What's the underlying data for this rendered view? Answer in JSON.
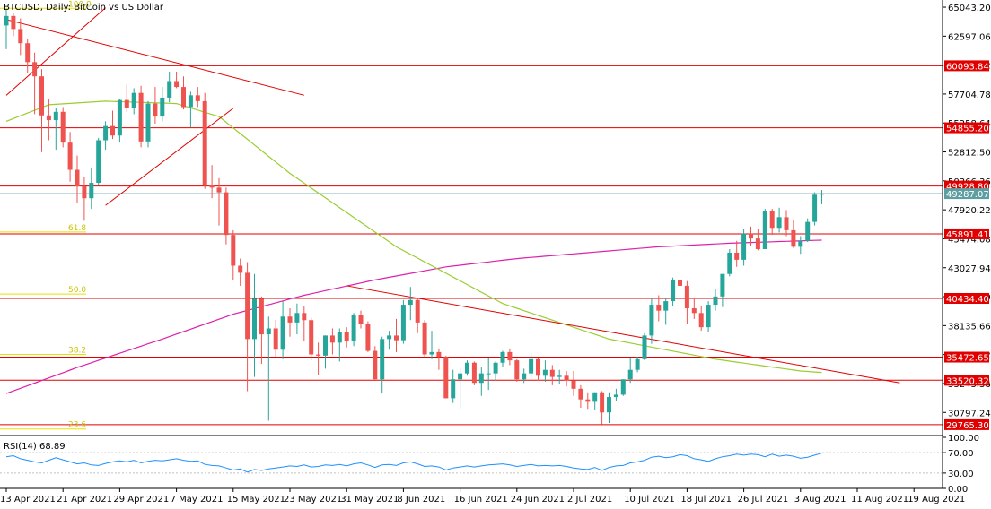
{
  "chart_data": {
    "type": "candlestick",
    "title": "BTCUSD, Daily:  BitCoin vs US Dollar",
    "symbol": "BTCUSD",
    "timeframe": "Daily",
    "ylim": [
      29000,
      65500
    ],
    "price_ticks": [
      "65043.200",
      "62597.060",
      "60150.920",
      "57704.780",
      "55258.640",
      "52812.500",
      "50366.360",
      "47920.220",
      "45474.080",
      "43027.940",
      "40581.800",
      "38135.660",
      "35689.520",
      "33243.380",
      "30797.240"
    ],
    "x_tick_labels": [
      "13 Apr 2021",
      "21 Apr 2021",
      "29 Apr 2021",
      "7 May 2021",
      "15 May 2021",
      "23 May 2021",
      "31 May 2021",
      "8 Jun 2021",
      "16 Jun 2021",
      "24 Jun 2021",
      "2 Jul 2021",
      "10 Jul 2021",
      "18 Jul 2021",
      "26 Jul 2021",
      "3 Aug 2021",
      "11 Aug 2021",
      "19 Aug 2021"
    ],
    "colors": {
      "bull": "#26a69a",
      "bear": "#ef5350",
      "level": "#e00000",
      "ma_fast": "#9acd32",
      "ma_slow": "#dd22aa",
      "fib": "#e8e000",
      "trend": "#e00000",
      "current": "#5f9ea0",
      "rsi": "#1e90ff"
    },
    "horizontal_levels": [
      {
        "label": "60093.845",
        "value": 60093.845
      },
      {
        "label": "54855.207",
        "value": 54855.207
      },
      {
        "label": "49928.803",
        "value": 49928.803
      },
      {
        "label": "45891.413",
        "value": 45891.413
      },
      {
        "label": "40434.404",
        "value": 40434.404
      },
      {
        "label": "35472.658",
        "value": 35472.658
      },
      {
        "label": "33520.324",
        "value": 33520.324
      },
      {
        "label": "29765.308",
        "value": 29765.308
      }
    ],
    "current_price": {
      "label": "49287.074",
      "value": 49287.074
    },
    "fib_levels": [
      {
        "label": "100.0",
        "value": 64950
      },
      {
        "label": "61.8",
        "value": 46050
      },
      {
        "label": "50.0",
        "value": 40800
      },
      {
        "label": "38.2",
        "value": 35700
      },
      {
        "label": "23.6",
        "value": 29400
      }
    ],
    "candles": [
      [
        63500,
        64900,
        61500,
        64300
      ],
      [
        64300,
        64600,
        62600,
        63200
      ],
      [
        63200,
        64100,
        61000,
        62000
      ],
      [
        62000,
        62400,
        59500,
        60400
      ],
      [
        60400,
        61200,
        56000,
        59200
      ],
      [
        59200,
        59800,
        52800,
        55900
      ],
      [
        55900,
        57300,
        53800,
        55500
      ],
      [
        55500,
        56500,
        53000,
        56200
      ],
      [
        56200,
        56600,
        53200,
        53600
      ],
      [
        53600,
        54500,
        50300,
        51300
      ],
      [
        51300,
        52500,
        48500,
        49900
      ],
      [
        49900,
        50700,
        47000,
        48900
      ],
      [
        48900,
        51500,
        48000,
        50200
      ],
      [
        50200,
        54000,
        50000,
        53800
      ],
      [
        53800,
        55400,
        53000,
        55000
      ],
      [
        55000,
        56300,
        53900,
        54200
      ],
      [
        54200,
        57300,
        53600,
        57200
      ],
      [
        57200,
        58500,
        56200,
        56500
      ],
      [
        56500,
        58200,
        56000,
        57800
      ],
      [
        57800,
        58400,
        53200,
        53700
      ],
      [
        53700,
        57100,
        53200,
        56900
      ],
      [
        56900,
        58300,
        55200,
        55800
      ],
      [
        55800,
        58300,
        55400,
        57400
      ],
      [
        57400,
        59600,
        57000,
        58800
      ],
      [
        58800,
        59600,
        58200,
        58300
      ],
      [
        58300,
        59200,
        56400,
        56600
      ],
      [
        56600,
        57900,
        54900,
        57600
      ],
      [
        57600,
        58300,
        56600,
        57100
      ],
      [
        57100,
        57800,
        49700,
        50000
      ],
      [
        50000,
        51700,
        48900,
        49800
      ],
      [
        49800,
        50600,
        46600,
        49400
      ],
      [
        49400,
        49800,
        45000,
        45800
      ],
      [
        45800,
        46200,
        42000,
        43200
      ],
      [
        43200,
        43800,
        41500,
        42600
      ],
      [
        42600,
        43500,
        32600,
        37000
      ],
      [
        37000,
        42500,
        33800,
        40400
      ],
      [
        40400,
        40600,
        34900,
        37400
      ],
      [
        37400,
        38900,
        30100,
        37900
      ],
      [
        37900,
        38600,
        35500,
        36100
      ],
      [
        36100,
        40200,
        35300,
        38900
      ],
      [
        38900,
        39600,
        37200,
        38400
      ],
      [
        38400,
        40000,
        37400,
        39200
      ],
      [
        39200,
        39800,
        36800,
        38600
      ],
      [
        38600,
        38800,
        35200,
        35700
      ],
      [
        35700,
        36700,
        34000,
        35600
      ],
      [
        35600,
        37300,
        34500,
        37300
      ],
      [
        37300,
        37900,
        35700,
        36700
      ],
      [
        36700,
        37900,
        35100,
        37600
      ],
      [
        37600,
        38000,
        36300,
        36800
      ],
      [
        36800,
        39200,
        36400,
        39000
      ],
      [
        39000,
        39400,
        37900,
        38300
      ],
      [
        38300,
        38500,
        35900,
        36000
      ],
      [
        36000,
        36400,
        33600,
        33600
      ],
      [
        33600,
        37200,
        32400,
        37000
      ],
      [
        37000,
        37700,
        36100,
        37300
      ],
      [
        37300,
        38700,
        35900,
        36900
      ],
      [
        36900,
        40300,
        36600,
        39900
      ],
      [
        39900,
        41400,
        38600,
        40300
      ],
      [
        40300,
        40400,
        37500,
        38400
      ],
      [
        38400,
        38600,
        35500,
        35700
      ],
      [
        35700,
        37700,
        35300,
        35900
      ],
      [
        35900,
        36200,
        34400,
        35500
      ],
      [
        35500,
        35600,
        32000,
        32000
      ],
      [
        32000,
        34400,
        31600,
        33600
      ],
      [
        33600,
        34500,
        31100,
        34100
      ],
      [
        34100,
        35200,
        33900,
        35000
      ],
      [
        35000,
        35100,
        33100,
        33300
      ],
      [
        33300,
        34600,
        32200,
        34100
      ],
      [
        34100,
        35400,
        32700,
        34100
      ],
      [
        34100,
        35100,
        33500,
        35000
      ],
      [
        35000,
        36000,
        34600,
        35900
      ],
      [
        35900,
        36200,
        34800,
        35200
      ],
      [
        35200,
        35300,
        33400,
        33600
      ],
      [
        33600,
        34500,
        33300,
        34100
      ],
      [
        34100,
        35800,
        33700,
        35300
      ],
      [
        35300,
        35400,
        33500,
        33900
      ],
      [
        33900,
        35200,
        33400,
        34400
      ],
      [
        34400,
        34800,
        33100,
        33800
      ],
      [
        33800,
        34400,
        33200,
        33900
      ],
      [
        33900,
        34300,
        33000,
        33500
      ],
      [
        33500,
        34300,
        32200,
        32800
      ],
      [
        32800,
        33100,
        31200,
        31900
      ],
      [
        31900,
        32500,
        31100,
        31700
      ],
      [
        31700,
        32500,
        31000,
        32500
      ],
      [
        32500,
        32600,
        29800,
        30800
      ],
      [
        30800,
        32500,
        29900,
        32100
      ],
      [
        32100,
        32800,
        31800,
        32300
      ],
      [
        32300,
        33600,
        32200,
        33600
      ],
      [
        33600,
        35400,
        33300,
        34400
      ],
      [
        34400,
        35500,
        34200,
        35300
      ],
      [
        35300,
        37500,
        35200,
        37300
      ],
      [
        37300,
        40500,
        36600,
        39900
      ],
      [
        39900,
        40700,
        38500,
        39400
      ],
      [
        39400,
        40500,
        38200,
        40200
      ],
      [
        40200,
        42200,
        39800,
        42000
      ],
      [
        42000,
        42300,
        39800,
        41500
      ],
      [
        41500,
        41900,
        38300,
        39600
      ],
      [
        39600,
        40500,
        38700,
        39200
      ],
      [
        39200,
        39800,
        37700,
        38000
      ],
      [
        38000,
        40200,
        37600,
        39900
      ],
      [
        39900,
        41200,
        39400,
        40600
      ],
      [
        40600,
        42500,
        39700,
        42500
      ],
      [
        42500,
        44600,
        42300,
        44300
      ],
      [
        44300,
        45300,
        43100,
        43700
      ],
      [
        43700,
        46300,
        43200,
        45900
      ],
      [
        45900,
        46500,
        44900,
        45500
      ],
      [
        45500,
        46300,
        44500,
        44600
      ],
      [
        44600,
        48000,
        44600,
        47800
      ],
      [
        47800,
        48000,
        45800,
        46400
      ],
      [
        46400,
        48100,
        46000,
        47300
      ],
      [
        47300,
        47900,
        45700,
        46200
      ],
      [
        46200,
        47100,
        44700,
        44800
      ],
      [
        44800,
        45700,
        44200,
        45300
      ],
      [
        45300,
        47200,
        45200,
        46900
      ],
      [
        46900,
        49400,
        46600,
        49200
      ],
      [
        49200,
        49600,
        48400,
        49287
      ]
    ],
    "ma_fast_anchors": [
      [
        0,
        55400
      ],
      [
        6,
        56800
      ],
      [
        14,
        57100
      ],
      [
        24,
        56900
      ],
      [
        30,
        55800
      ],
      [
        40,
        51000
      ],
      [
        55,
        44800
      ],
      [
        70,
        40000
      ],
      [
        85,
        37000
      ],
      [
        100,
        35300
      ],
      [
        112,
        34300
      ],
      [
        122,
        33900
      ],
      [
        131,
        34200
      ],
      [
        140,
        34300
      ],
      [
        148,
        35700
      ],
      [
        156,
        37600
      ],
      [
        164,
        38700
      ]
    ],
    "ma_slow_anchors": [
      [
        0,
        32400
      ],
      [
        10,
        34600
      ],
      [
        22,
        37000
      ],
      [
        32,
        39100
      ],
      [
        42,
        40700
      ],
      [
        52,
        42000
      ],
      [
        62,
        43100
      ],
      [
        72,
        43800
      ],
      [
        82,
        44300
      ],
      [
        92,
        44800
      ],
      [
        102,
        45100
      ],
      [
        112,
        45300
      ],
      [
        122,
        45500
      ],
      [
        132,
        45600
      ],
      [
        142,
        45700
      ],
      [
        152,
        45800
      ],
      [
        164,
        46000
      ]
    ],
    "trend_lines": [
      {
        "x1": 0,
        "y1": 64000,
        "x2": 42,
        "y2": 57600
      },
      {
        "x1": 0,
        "y1": 57600,
        "x2": 14,
        "y2": 65000
      },
      {
        "x1": 14,
        "y1": 48300,
        "x2": 32,
        "y2": 56500
      },
      {
        "x1": 48,
        "y1": 41500,
        "x2": 126,
        "y2": 33300
      }
    ],
    "rsi": {
      "label": "RSI(14) 68.89",
      "value": 68.89,
      "ticks": [
        "100.00",
        "70.00",
        "30.00",
        "0.00"
      ],
      "values": [
        62,
        64,
        58,
        55,
        52,
        50,
        55,
        60,
        56,
        52,
        48,
        50,
        46,
        45,
        49,
        52,
        54,
        52,
        55,
        50,
        53,
        55,
        54,
        56,
        58,
        55,
        53,
        54,
        47,
        45,
        44,
        40,
        36,
        38,
        32,
        37,
        35,
        38,
        40,
        42,
        44,
        43,
        46,
        42,
        43,
        46,
        45,
        47,
        44,
        48,
        50,
        46,
        41,
        46,
        47,
        45,
        50,
        52,
        48,
        43,
        44,
        42,
        36,
        40,
        42,
        44,
        42,
        44,
        46,
        47,
        48,
        46,
        43,
        45,
        47,
        44,
        45,
        44,
        45,
        43,
        40,
        38,
        37,
        41,
        35,
        41,
        44,
        45,
        50,
        52,
        55,
        61,
        63,
        60,
        62,
        66,
        64,
        58,
        56,
        53,
        58,
        62,
        64,
        67,
        65,
        67,
        66,
        62,
        67,
        63,
        65,
        63,
        59,
        61,
        65,
        68.89
      ]
    }
  }
}
